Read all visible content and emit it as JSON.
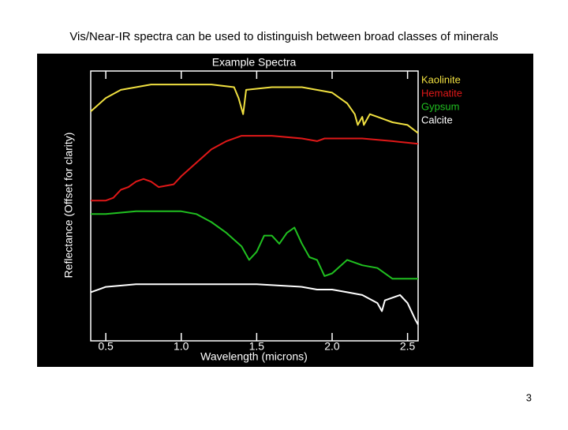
{
  "slide": {
    "title": "Vis/Near-IR spectra can be used to distinguish between broad classes of minerals",
    "page_number": 3
  },
  "chart_data": {
    "type": "line",
    "title": "Example Spectra",
    "xlabel": "Wavelength (microns)",
    "ylabel": "Reflectance (Offset for clarity)",
    "xlim": [
      0.4,
      2.57
    ],
    "xticks": [
      0.5,
      {
        "value": 1,
        "label": "1.0"
      },
      1.5,
      {
        "value": 2,
        "label": "2.0"
      },
      2.5
    ],
    "ylim": [
      0,
      1
    ],
    "series": [
      {
        "name": "Kaolinite",
        "color": "#f0e040",
        "x": [
          0.4,
          0.5,
          0.6,
          0.7,
          0.8,
          1.0,
          1.2,
          1.35,
          1.38,
          1.41,
          1.43,
          1.6,
          1.8,
          2.0,
          2.1,
          2.15,
          2.17,
          2.2,
          2.21,
          2.25,
          2.3,
          2.4,
          2.5,
          2.57
        ],
        "values": [
          0.85,
          0.9,
          0.93,
          0.94,
          0.95,
          0.95,
          0.95,
          0.94,
          0.9,
          0.84,
          0.93,
          0.94,
          0.94,
          0.92,
          0.88,
          0.84,
          0.8,
          0.83,
          0.8,
          0.84,
          0.83,
          0.81,
          0.8,
          0.77
        ]
      },
      {
        "name": "Hematite",
        "color": "#e01818",
        "x": [
          0.4,
          0.5,
          0.55,
          0.6,
          0.65,
          0.7,
          0.75,
          0.8,
          0.85,
          0.95,
          1.0,
          1.1,
          1.2,
          1.3,
          1.4,
          1.6,
          1.8,
          1.9,
          1.95,
          2.2,
          2.4,
          2.57
        ],
        "values": [
          0.52,
          0.52,
          0.53,
          0.56,
          0.57,
          0.59,
          0.6,
          0.59,
          0.57,
          0.58,
          0.61,
          0.66,
          0.71,
          0.74,
          0.76,
          0.76,
          0.75,
          0.74,
          0.75,
          0.75,
          0.74,
          0.73
        ]
      },
      {
        "name": "Gypsum",
        "color": "#20c020",
        "x": [
          0.4,
          0.5,
          0.7,
          1.0,
          1.1,
          1.2,
          1.3,
          1.4,
          1.45,
          1.5,
          1.55,
          1.6,
          1.65,
          1.7,
          1.75,
          1.8,
          1.85,
          1.9,
          1.95,
          2.0,
          2.1,
          2.2,
          2.3,
          2.4,
          2.57
        ],
        "values": [
          0.47,
          0.47,
          0.48,
          0.48,
          0.47,
          0.44,
          0.4,
          0.35,
          0.3,
          0.33,
          0.39,
          0.39,
          0.36,
          0.4,
          0.42,
          0.36,
          0.31,
          0.3,
          0.24,
          0.25,
          0.3,
          0.28,
          0.27,
          0.23,
          0.23
        ]
      },
      {
        "name": "Calcite",
        "color": "#ffffff",
        "x": [
          0.4,
          0.5,
          0.7,
          1.0,
          1.5,
          1.8,
          1.9,
          2.0,
          2.1,
          2.2,
          2.3,
          2.33,
          2.35,
          2.45,
          2.5,
          2.55,
          2.57
        ],
        "values": [
          0.18,
          0.2,
          0.21,
          0.21,
          0.21,
          0.2,
          0.19,
          0.19,
          0.18,
          0.17,
          0.14,
          0.11,
          0.15,
          0.17,
          0.14,
          0.08,
          0.06
        ]
      }
    ]
  }
}
